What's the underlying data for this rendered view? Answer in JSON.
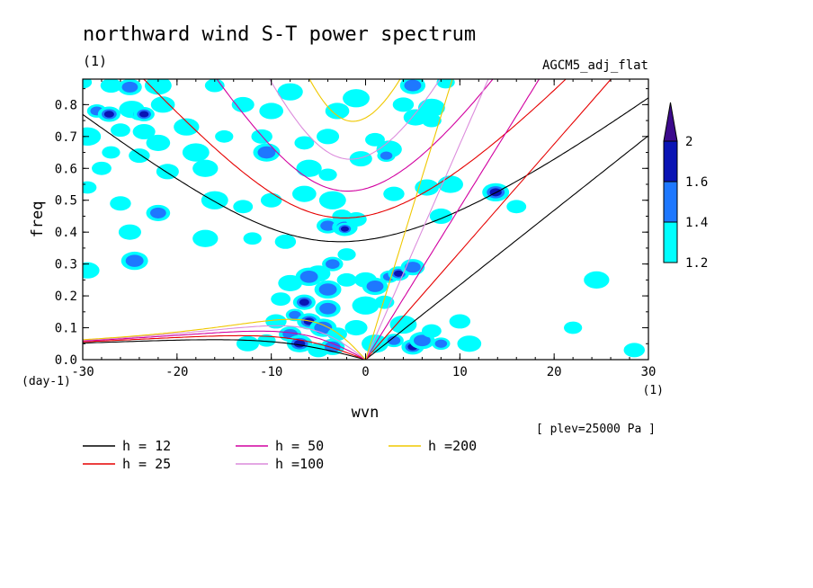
{
  "chart_data": {
    "type": "heatmap",
    "title": "northward wind S-T power spectrum",
    "title_unit": "(1)",
    "subtitle": "AGCM5_adj_flat",
    "xlabel": "wvn",
    "ylabel": "freq",
    "x_unit": "(1)",
    "y_unit": "(day-1)",
    "xlim": [
      -30,
      30
    ],
    "ylim": [
      0,
      0.88
    ],
    "x_ticks": [
      "-30",
      "-20",
      "-10",
      "0",
      "10",
      "20",
      "30"
    ],
    "y_ticks": [
      "0.0",
      "0.1",
      "0.2",
      "0.3",
      "0.4",
      "0.5",
      "0.6",
      "0.7",
      "0.8"
    ],
    "annotation": "[ plev=25000 Pa ]",
    "colorbar": {
      "levels": [
        "1.2",
        "1.4",
        "1.6",
        "2"
      ],
      "colors": [
        "#00ffff",
        "#1e78ff",
        "#0a14b4",
        "#3c0a8c"
      ]
    },
    "dispersion_curves": [
      {
        "label": "h = 12",
        "h": 12,
        "color": "#000000"
      },
      {
        "label": "h = 25",
        "h": 25,
        "color": "#e60000"
      },
      {
        "label": "h = 50",
        "h": 50,
        "color": "#d200a0"
      },
      {
        "label": "h =100",
        "h": 100,
        "color": "#dc8cdc"
      },
      {
        "label": "h =200",
        "h": 200,
        "color": "#f0c800"
      }
    ],
    "power_blobs": [
      {
        "x": -30,
        "y": 0.87,
        "level": 1
      },
      {
        "x": -27,
        "y": 0.86,
        "level": 1
      },
      {
        "x": -25,
        "y": 0.855,
        "level": 2
      },
      {
        "x": -22,
        "y": 0.86,
        "level": 1
      },
      {
        "x": -28.5,
        "y": 0.78,
        "level": 2
      },
      {
        "x": -27.2,
        "y": 0.77,
        "level": 3
      },
      {
        "x": -24.8,
        "y": 0.785,
        "level": 1
      },
      {
        "x": -24,
        "y": 0.77,
        "level": 2
      },
      {
        "x": -23.5,
        "y": 0.77,
        "level": 3
      },
      {
        "x": -21.5,
        "y": 0.8,
        "level": 1
      },
      {
        "x": -29.5,
        "y": 0.7,
        "level": 1
      },
      {
        "x": -26,
        "y": 0.72,
        "level": 1
      },
      {
        "x": -23.5,
        "y": 0.715,
        "level": 1
      },
      {
        "x": -19,
        "y": 0.73,
        "level": 1
      },
      {
        "x": -27,
        "y": 0.65,
        "level": 1
      },
      {
        "x": -24,
        "y": 0.64,
        "level": 1
      },
      {
        "x": -22,
        "y": 0.68,
        "level": 1
      },
      {
        "x": -18,
        "y": 0.65,
        "level": 1
      },
      {
        "x": -28,
        "y": 0.6,
        "level": 1
      },
      {
        "x": -21,
        "y": 0.59,
        "level": 1
      },
      {
        "x": -17,
        "y": 0.6,
        "level": 1
      },
      {
        "x": -29.5,
        "y": 0.54,
        "level": 1
      },
      {
        "x": -26,
        "y": 0.49,
        "level": 1
      },
      {
        "x": -22,
        "y": 0.46,
        "level": 2
      },
      {
        "x": -16,
        "y": 0.5,
        "level": 1
      },
      {
        "x": -13,
        "y": 0.48,
        "level": 1
      },
      {
        "x": -25,
        "y": 0.4,
        "level": 1
      },
      {
        "x": -17,
        "y": 0.38,
        "level": 1
      },
      {
        "x": -12,
        "y": 0.38,
        "level": 1
      },
      {
        "x": -8.5,
        "y": 0.37,
        "level": 1
      },
      {
        "x": -29.5,
        "y": 0.28,
        "level": 1
      },
      {
        "x": -24.5,
        "y": 0.31,
        "level": 2
      },
      {
        "x": -16,
        "y": 0.86,
        "level": 1
      },
      {
        "x": -13,
        "y": 0.8,
        "level": 1
      },
      {
        "x": -8,
        "y": 0.84,
        "level": 1
      },
      {
        "x": -15,
        "y": 0.7,
        "level": 1
      },
      {
        "x": -11,
        "y": 0.7,
        "level": 1
      },
      {
        "x": -10,
        "y": 0.78,
        "level": 1
      },
      {
        "x": -10.5,
        "y": 0.65,
        "level": 2
      },
      {
        "x": -6.5,
        "y": 0.68,
        "level": 1
      },
      {
        "x": -4,
        "y": 0.7,
        "level": 1
      },
      {
        "x": -6,
        "y": 0.6,
        "level": 1
      },
      {
        "x": -4,
        "y": 0.58,
        "level": 1
      },
      {
        "x": -10,
        "y": 0.5,
        "level": 1
      },
      {
        "x": -6.5,
        "y": 0.52,
        "level": 1
      },
      {
        "x": -3.5,
        "y": 0.5,
        "level": 1
      },
      {
        "x": -2.5,
        "y": 0.45,
        "level": 1
      },
      {
        "x": -4,
        "y": 0.42,
        "level": 2
      },
      {
        "x": -2.2,
        "y": 0.415,
        "level": 2
      },
      {
        "x": -2.2,
        "y": 0.41,
        "level": 3
      },
      {
        "x": -1,
        "y": 0.44,
        "level": 1
      },
      {
        "x": -3,
        "y": 0.78,
        "level": 1
      },
      {
        "x": -1,
        "y": 0.82,
        "level": 1
      },
      {
        "x": 1,
        "y": 0.69,
        "level": 1
      },
      {
        "x": -0.5,
        "y": 0.63,
        "level": 1
      },
      {
        "x": 2.5,
        "y": 0.66,
        "level": 1
      },
      {
        "x": 2.2,
        "y": 0.64,
        "level": 2
      },
      {
        "x": 4,
        "y": 0.8,
        "level": 1
      },
      {
        "x": 5.3,
        "y": 0.76,
        "level": 1
      },
      {
        "x": 7,
        "y": 0.79,
        "level": 1
      },
      {
        "x": 7,
        "y": 0.75,
        "level": 1
      },
      {
        "x": 5,
        "y": 0.87,
        "level": 1
      },
      {
        "x": 5,
        "y": 0.86,
        "level": 2
      },
      {
        "x": 8.5,
        "y": 0.87,
        "level": 1
      },
      {
        "x": 3,
        "y": 0.52,
        "level": 1
      },
      {
        "x": 6.5,
        "y": 0.54,
        "level": 1
      },
      {
        "x": 13.8,
        "y": 0.525,
        "level": 3
      },
      {
        "x": 16,
        "y": 0.48,
        "level": 1
      },
      {
        "x": 8,
        "y": 0.45,
        "level": 1
      },
      {
        "x": 9,
        "y": 0.55,
        "level": 1
      },
      {
        "x": -2,
        "y": 0.33,
        "level": 1
      },
      {
        "x": -3.5,
        "y": 0.3,
        "level": 2
      },
      {
        "x": -5,
        "y": 0.27,
        "level": 1
      },
      {
        "x": -4,
        "y": 0.22,
        "level": 2
      },
      {
        "x": -2,
        "y": 0.25,
        "level": 1
      },
      {
        "x": 0,
        "y": 0.25,
        "level": 1
      },
      {
        "x": 1,
        "y": 0.23,
        "level": 2
      },
      {
        "x": 2.5,
        "y": 0.26,
        "level": 2
      },
      {
        "x": 3.5,
        "y": 0.27,
        "level": 3
      },
      {
        "x": 5,
        "y": 0.29,
        "level": 2
      },
      {
        "x": 0,
        "y": 0.17,
        "level": 1
      },
      {
        "x": 2,
        "y": 0.18,
        "level": 1
      },
      {
        "x": -1,
        "y": 0.1,
        "level": 1
      },
      {
        "x": 24.5,
        "y": 0.25,
        "level": 1
      },
      {
        "x": 22,
        "y": 0.1,
        "level": 1
      },
      {
        "x": 28.5,
        "y": 0.03,
        "level": 1
      },
      {
        "x": -8,
        "y": 0.24,
        "level": 1
      },
      {
        "x": -6,
        "y": 0.26,
        "level": 2
      },
      {
        "x": -9,
        "y": 0.19,
        "level": 1
      },
      {
        "x": -6.5,
        "y": 0.18,
        "level": 3
      },
      {
        "x": -4,
        "y": 0.16,
        "level": 2
      },
      {
        "x": -7.5,
        "y": 0.14,
        "level": 2
      },
      {
        "x": -9.5,
        "y": 0.12,
        "level": 1
      },
      {
        "x": -6,
        "y": 0.12,
        "level": 3
      },
      {
        "x": -4.5,
        "y": 0.1,
        "level": 2
      },
      {
        "x": -3,
        "y": 0.08,
        "level": 1
      },
      {
        "x": -8,
        "y": 0.08,
        "level": 2
      },
      {
        "x": -7,
        "y": 0.05,
        "level": 3
      },
      {
        "x": -10.5,
        "y": 0.06,
        "level": 1
      },
      {
        "x": -5,
        "y": 0.03,
        "level": 1
      },
      {
        "x": -3.5,
        "y": 0.04,
        "level": 2
      },
      {
        "x": 1,
        "y": 0.05,
        "level": 1
      },
      {
        "x": 3,
        "y": 0.06,
        "level": 2
      },
      {
        "x": 5,
        "y": 0.04,
        "level": 3
      },
      {
        "x": 6,
        "y": 0.06,
        "level": 2
      },
      {
        "x": 8,
        "y": 0.05,
        "level": 2
      },
      {
        "x": 10,
        "y": 0.12,
        "level": 1
      },
      {
        "x": 11,
        "y": 0.05,
        "level": 1
      },
      {
        "x": 4,
        "y": 0.11,
        "level": 1
      },
      {
        "x": 7,
        "y": 0.09,
        "level": 1
      },
      {
        "x": -12.5,
        "y": 0.05,
        "level": 1
      }
    ]
  }
}
